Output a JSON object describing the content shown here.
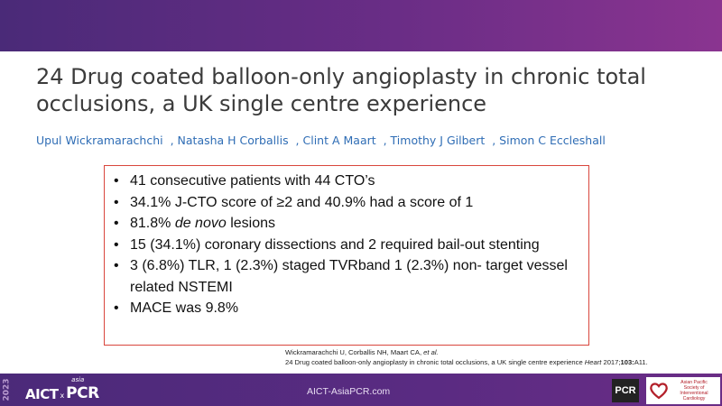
{
  "slide": {
    "title": "24 Drug coated balloon-only angioplasty in chronic total occlusions, a UK single centre experience",
    "authors": [
      "Upul Wickramarachchi",
      "Natasha H Corballis",
      "Clint A Maart",
      "Timothy J Gilbert",
      "Simon C Eccleshall"
    ],
    "bullets": [
      {
        "text": "41 consecutive patients with 44 CTO’s"
      },
      {
        "text": "34.1% J-CTO score of ≥2 and 40.9% had a score of 1"
      },
      {
        "pre": "81.8% ",
        "italic": "de novo",
        "post": " lesions"
      },
      {
        "text": "15 (34.1%) coronary dissections and 2 required bail-out stenting"
      },
      {
        "text": "3 (6.8%) TLR, 1 (2.3%) staged TVRband 1 (2.3%) non- target vessel related NSTEMI"
      },
      {
        "text": "MACE was 9.8%"
      }
    ],
    "citation": {
      "line1_authors": "Wickramarachchi U, Corballis NH, Maart CA, ",
      "line1_etal": "et al.",
      "line2_text": "24 Drug coated balloon-only angioplasty in chronic total occlusions, a UK single centre experience ",
      "line2_journal": "Heart",
      "line2_year": " 2017;",
      "line2_volume": "103:",
      "line2_page": "A11."
    }
  },
  "footer": {
    "year": "2023",
    "logo_aict": "AICT",
    "logo_x": "x",
    "logo_asia": "asia",
    "logo_pcr": "PCR",
    "site": "AICT-AsiaPCR.com",
    "pcr_badge": "PCR",
    "apsic_lines": [
      "Asian Pacific",
      "Society of",
      "Interventional",
      "Cardiology"
    ]
  },
  "colors": {
    "band": "#5a2b82",
    "title": "#3b3b3b",
    "authors": "#2f6db5",
    "box_border": "#d9463c"
  }
}
